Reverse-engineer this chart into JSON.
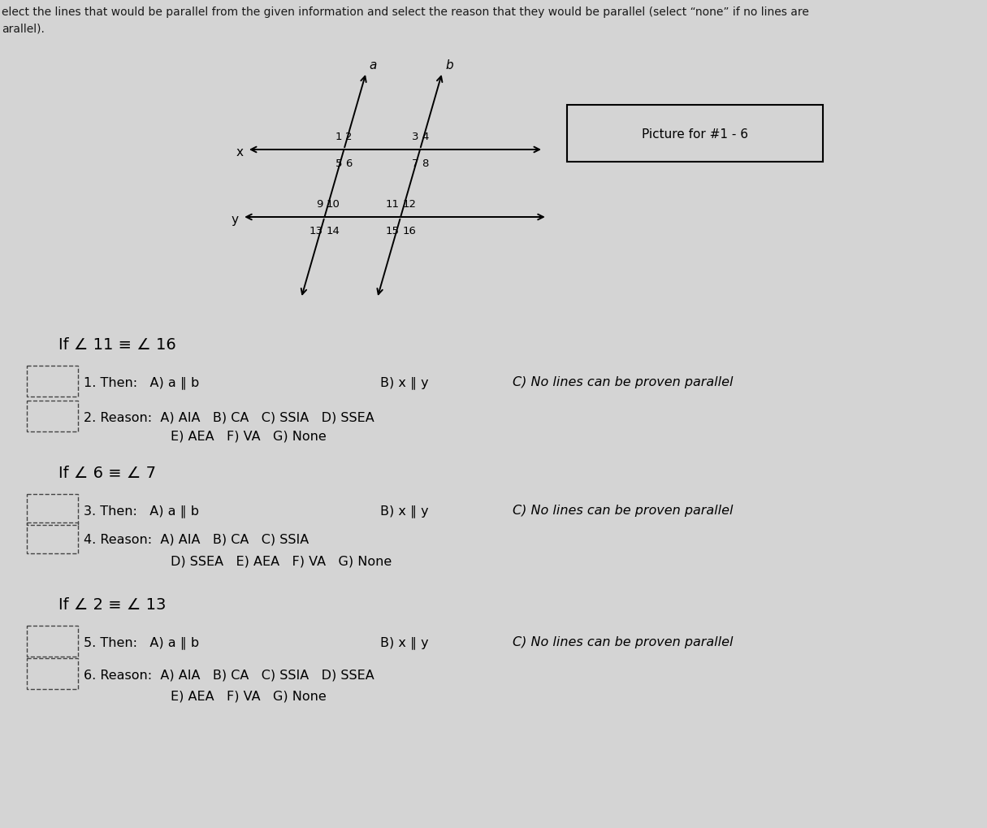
{
  "bg_color": "#d4d4d4",
  "header_text1": "elect the lines that would be parallel from the given information and select the reason that they would be parallel (select “none” if no lines are",
  "header_text2": "arallel).",
  "picture_label": "Picture for #1 - 6",
  "questions": [
    {
      "condition": "If ∠ 11 ≡ ∠ 16",
      "q1_num": "1",
      "q1_then": "Then:  A) a ∥ b",
      "q1_b": "B) x ∥ y",
      "q1_c": "C) No lines can be proven parallel",
      "q2_num": "2",
      "q2_reason": "Reason:  A) AIA   B) CA   C) SSIA   D) SSEA",
      "q2_row2": "E) AEA   F) VA   G) None"
    },
    {
      "condition": "If ∠ 6 ≡ ∠ 7",
      "q1_num": "3",
      "q1_then": "Then:  A) a ∥ b",
      "q1_b": "B) x ∥ y",
      "q1_c": "C) No lines can be proven parallel",
      "q2_num": "4",
      "q2_reason": "Reason:  A) AIA   B) CA   C) SSIA",
      "q2_row2": "D) SSEA   E) AEA   F) VA   G) None"
    },
    {
      "condition": "If ∠ 2 ≡ ∠ 13",
      "q1_num": "5",
      "q1_then": "Then:  A) a ∥ b",
      "q1_b": "B) x ∥ y",
      "q1_c": "C) No lines can be proven parallel",
      "q2_num": "6",
      "q2_reason": "Reason:  A) AIA   B) CA   C) SSIA   D) SSEA",
      "q2_row2": "E) AEA   F) VA   G) None"
    }
  ]
}
